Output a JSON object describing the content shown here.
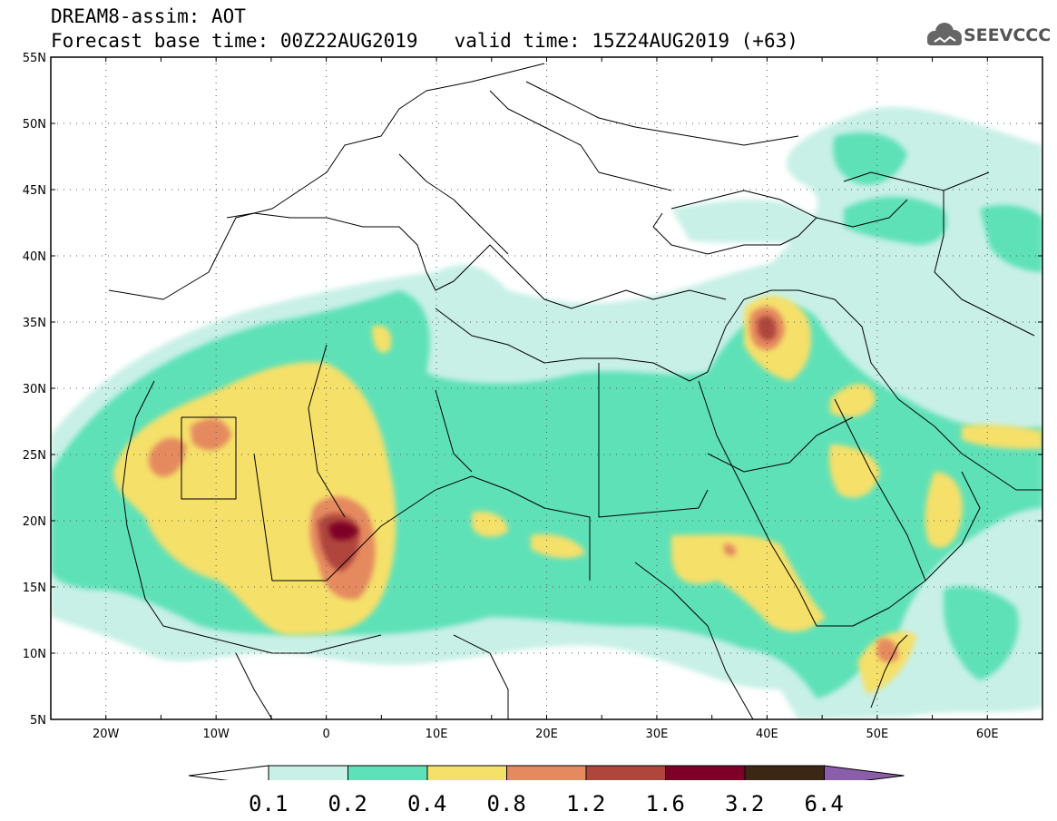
{
  "header": {
    "line1": "DREAM8-assim: AOT",
    "base_time": "Forecast base time: 00Z22AUG2019",
    "valid_time": "valid time: 15Z24AUG2019 (+63)"
  },
  "logo": {
    "text": "SEEVCCC",
    "icon": "cloud-icon"
  },
  "map": {
    "lon_labels": [
      "20W",
      "10W",
      "0",
      "10E",
      "20E",
      "30E",
      "40E",
      "50E",
      "60E"
    ],
    "lat_labels": [
      "55N",
      "50N",
      "45N",
      "40N",
      "35N",
      "30N",
      "25N",
      "20N",
      "15N",
      "10N",
      "5N"
    ],
    "lon_range": [
      -25,
      65
    ],
    "lat_range": [
      5,
      55
    ],
    "gridlines": "dotted"
  },
  "colorbar": {
    "levels": [
      "0.1",
      "0.2",
      "0.4",
      "0.8",
      "1.2",
      "1.6",
      "3.2",
      "6.4"
    ],
    "colors": [
      "#ffffff",
      "#c8f0e6",
      "#5ee1b8",
      "#f5e06a",
      "#e58a5e",
      "#b0453c",
      "#7e0028",
      "#3c2614",
      "#8a5ea8"
    ]
  }
}
